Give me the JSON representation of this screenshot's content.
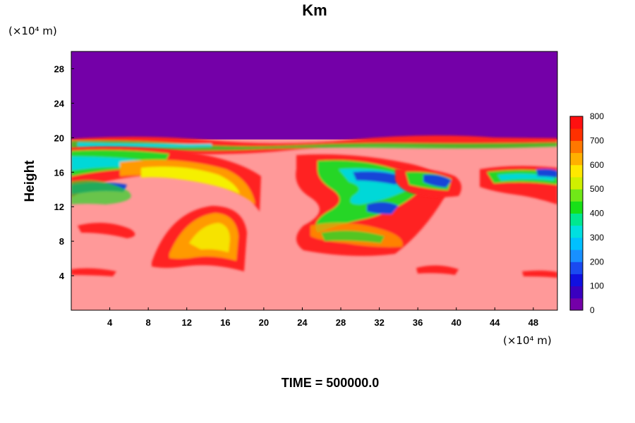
{
  "chart_data": {
    "type": "heatmap",
    "title": "Km",
    "ylabel": "Height",
    "y_unit_label": "(×10⁴ m)",
    "x_unit_label": "(×10⁴ m)",
    "time_label": "TIME = 500000.0",
    "xlim": [
      0,
      50.5
    ],
    "ylim": [
      0,
      30
    ],
    "x_ticks": [
      "4",
      "8",
      "12",
      "16",
      "20",
      "24",
      "28",
      "32",
      "36",
      "40",
      "44",
      "48"
    ],
    "x_tick_values": [
      4,
      8,
      12,
      16,
      20,
      24,
      28,
      32,
      36,
      40,
      44,
      48
    ],
    "y_ticks": [
      "4",
      "8",
      "12",
      "16",
      "20",
      "24",
      "28"
    ],
    "y_tick_values": [
      4,
      8,
      12,
      16,
      20,
      24,
      28
    ],
    "colorbar": {
      "min": 0,
      "max": 800,
      "ticks": [
        "0",
        "100",
        "200",
        "300",
        "400",
        "500",
        "600",
        "700",
        "800"
      ],
      "tick_values": [
        0,
        100,
        200,
        300,
        400,
        500,
        600,
        700,
        800
      ]
    },
    "field_regions": [
      {
        "name": "upper layer",
        "value": 0,
        "y_range": [
          19.8,
          30
        ],
        "color": "#7400a8"
      },
      {
        "name": "lower layer",
        "value": 800,
        "y_range": [
          0,
          19.8
        ],
        "color": "#ff9999"
      }
    ],
    "colors": {
      "low": "#7400a8",
      "high": "#ff9999",
      "red": "#ff2020",
      "orange": "#ff9a00",
      "yellow": "#f5f000",
      "green": "#27d627",
      "cyan": "#00d8d8",
      "blue": "#1844d8"
    }
  }
}
